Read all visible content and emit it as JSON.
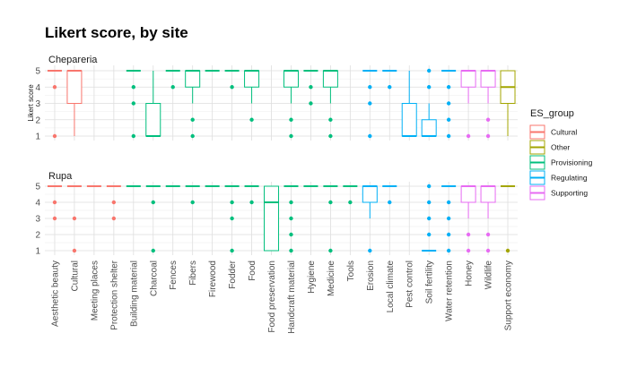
{
  "chart_data": {
    "type": "boxplot",
    "title": "Likert score, by site",
    "ylabel": "Likert score",
    "ylim": [
      1,
      5
    ],
    "yticks": [
      1,
      2,
      3,
      4,
      5
    ],
    "categories": [
      "Aesthetic beauty",
      "Cultural",
      "Meeting places",
      "Protection shelter",
      "Building material",
      "Charcoal",
      "Fences",
      "Fibers",
      "Firewood",
      "Fodder",
      "Food",
      "Food preservation",
      "Handcraft material",
      "Hygiene",
      "Medicine",
      "Tools",
      "Erosion",
      "Local climate",
      "Pest control",
      "Soil fertility",
      "Water retention",
      "Honey",
      "Wildlife",
      "Support economy"
    ],
    "category_group": [
      "Cultural",
      "Cultural",
      "Cultural",
      "Cultural",
      "Provisioning",
      "Provisioning",
      "Provisioning",
      "Provisioning",
      "Provisioning",
      "Provisioning",
      "Provisioning",
      "Provisioning",
      "Provisioning",
      "Provisioning",
      "Provisioning",
      "Provisioning",
      "Regulating",
      "Regulating",
      "Regulating",
      "Regulating",
      "Regulating",
      "Supporting",
      "Supporting",
      "Other"
    ],
    "legend": {
      "title": "ES_group",
      "groups": [
        "Cultural",
        "Other",
        "Provisioning",
        "Regulating",
        "Supporting"
      ],
      "colors": {
        "Cultural": "#F8766D",
        "Other": "#A3A500",
        "Provisioning": "#00BF7D",
        "Regulating": "#00B0F6",
        "Supporting": "#E76BF3"
      }
    },
    "panels": [
      {
        "site": "Chepareria",
        "boxes": [
          {
            "category": "Aesthetic beauty",
            "q1": 5,
            "median": 5,
            "q3": 5,
            "lower": 5,
            "upper": 5,
            "outliers": [
              4,
              1
            ]
          },
          {
            "category": "Cultural",
            "q1": 3,
            "median": 5,
            "q3": 5,
            "lower": 1,
            "upper": 5,
            "outliers": []
          },
          {
            "category": "Building material",
            "q1": 5,
            "median": 5,
            "q3": 5,
            "lower": 5,
            "upper": 5,
            "outliers": [
              4,
              3,
              1
            ]
          },
          {
            "category": "Charcoal",
            "q1": 1,
            "median": 1,
            "q3": 3,
            "lower": 1,
            "upper": 5,
            "outliers": []
          },
          {
            "category": "Fences",
            "q1": 5,
            "median": 5,
            "q3": 5,
            "lower": 5,
            "upper": 5,
            "outliers": [
              4
            ]
          },
          {
            "category": "Fibers",
            "q1": 4,
            "median": 5,
            "q3": 5,
            "lower": 3,
            "upper": 5,
            "outliers": [
              2,
              1
            ]
          },
          {
            "category": "Firewood",
            "q1": 5,
            "median": 5,
            "q3": 5,
            "lower": 5,
            "upper": 5,
            "outliers": []
          },
          {
            "category": "Fodder",
            "q1": 5,
            "median": 5,
            "q3": 5,
            "lower": 5,
            "upper": 5,
            "outliers": [
              4
            ]
          },
          {
            "category": "Food",
            "q1": 4,
            "median": 5,
            "q3": 5,
            "lower": 3,
            "upper": 5,
            "outliers": [
              2
            ]
          },
          {
            "category": "Handcraft material",
            "q1": 4,
            "median": 5,
            "q3": 5,
            "lower": 3,
            "upper": 5,
            "outliers": [
              2,
              1
            ]
          },
          {
            "category": "Hygiene",
            "q1": 5,
            "median": 5,
            "q3": 5,
            "lower": 5,
            "upper": 5,
            "outliers": [
              4,
              3
            ]
          },
          {
            "category": "Medicine",
            "q1": 4,
            "median": 5,
            "q3": 5,
            "lower": 3,
            "upper": 5,
            "outliers": [
              2,
              1
            ]
          },
          {
            "category": "Erosion",
            "q1": 5,
            "median": 5,
            "q3": 5,
            "lower": 5,
            "upper": 5,
            "outliers": [
              4,
              3,
              1
            ]
          },
          {
            "category": "Local climate",
            "q1": 5,
            "median": 5,
            "q3": 5,
            "lower": 5,
            "upper": 5,
            "outliers": [
              4
            ]
          },
          {
            "category": "Pest control",
            "q1": 1,
            "median": 1,
            "q3": 3,
            "lower": 1,
            "upper": 5,
            "outliers": []
          },
          {
            "category": "Soil fertility",
            "q1": 1,
            "median": 1,
            "q3": 2,
            "lower": 1,
            "upper": 3,
            "outliers": [
              5,
              4
            ]
          },
          {
            "category": "Water retention",
            "q1": 5,
            "median": 5,
            "q3": 5,
            "lower": 5,
            "upper": 5,
            "outliers": [
              4,
              3,
              2,
              1
            ]
          },
          {
            "category": "Honey",
            "q1": 4,
            "median": 5,
            "q3": 5,
            "lower": 3,
            "upper": 5,
            "outliers": [
              1
            ]
          },
          {
            "category": "Wildlife",
            "q1": 4,
            "median": 5,
            "q3": 5,
            "lower": 3,
            "upper": 5,
            "outliers": [
              2,
              1
            ]
          },
          {
            "category": "Support economy",
            "q1": 3,
            "median": 4,
            "q3": 5,
            "lower": 1,
            "upper": 5,
            "outliers": []
          }
        ]
      },
      {
        "site": "Rupa",
        "boxes": [
          {
            "category": "Aesthetic beauty",
            "q1": 5,
            "median": 5,
            "q3": 5,
            "lower": 5,
            "upper": 5,
            "outliers": [
              4,
              3
            ]
          },
          {
            "category": "Cultural",
            "q1": 5,
            "median": 5,
            "q3": 5,
            "lower": 5,
            "upper": 5,
            "outliers": [
              3,
              1
            ]
          },
          {
            "category": "Meeting places",
            "q1": 5,
            "median": 5,
            "q3": 5,
            "lower": 5,
            "upper": 5,
            "outliers": []
          },
          {
            "category": "Protection shelter",
            "q1": 5,
            "median": 5,
            "q3": 5,
            "lower": 5,
            "upper": 5,
            "outliers": [
              4,
              3
            ]
          },
          {
            "category": "Building material",
            "q1": 5,
            "median": 5,
            "q3": 5,
            "lower": 5,
            "upper": 5,
            "outliers": []
          },
          {
            "category": "Charcoal",
            "q1": 5,
            "median": 5,
            "q3": 5,
            "lower": 5,
            "upper": 5,
            "outliers": [
              4,
              1
            ]
          },
          {
            "category": "Fences",
            "q1": 5,
            "median": 5,
            "q3": 5,
            "lower": 5,
            "upper": 5,
            "outliers": []
          },
          {
            "category": "Fibers",
            "q1": 5,
            "median": 5,
            "q3": 5,
            "lower": 5,
            "upper": 5,
            "outliers": [
              4
            ]
          },
          {
            "category": "Firewood",
            "q1": 5,
            "median": 5,
            "q3": 5,
            "lower": 5,
            "upper": 5,
            "outliers": []
          },
          {
            "category": "Fodder",
            "q1": 5,
            "median": 5,
            "q3": 5,
            "lower": 5,
            "upper": 5,
            "outliers": [
              4,
              3,
              1
            ]
          },
          {
            "category": "Food",
            "q1": 5,
            "median": 5,
            "q3": 5,
            "lower": 5,
            "upper": 5,
            "outliers": [
              4
            ]
          },
          {
            "category": "Food preservation",
            "q1": 1,
            "median": 4,
            "q3": 5,
            "lower": 1,
            "upper": 5,
            "outliers": []
          },
          {
            "category": "Handcraft material",
            "q1": 5,
            "median": 5,
            "q3": 5,
            "lower": 5,
            "upper": 5,
            "outliers": [
              4,
              3,
              2,
              1
            ]
          },
          {
            "category": "Hygiene",
            "q1": 5,
            "median": 5,
            "q3": 5,
            "lower": 5,
            "upper": 5,
            "outliers": []
          },
          {
            "category": "Medicine",
            "q1": 5,
            "median": 5,
            "q3": 5,
            "lower": 5,
            "upper": 5,
            "outliers": [
              4,
              1
            ]
          },
          {
            "category": "Tools",
            "q1": 5,
            "median": 5,
            "q3": 5,
            "lower": 5,
            "upper": 5,
            "outliers": [
              4
            ]
          },
          {
            "category": "Erosion",
            "q1": 4,
            "median": 5,
            "q3": 5,
            "lower": 3,
            "upper": 5,
            "outliers": [
              1
            ]
          },
          {
            "category": "Local climate",
            "q1": 5,
            "median": 5,
            "q3": 5,
            "lower": 5,
            "upper": 5,
            "outliers": [
              4
            ]
          },
          {
            "category": "Soil fertility",
            "q1": 1,
            "median": 1,
            "q3": 1,
            "lower": 1,
            "upper": 1,
            "outliers": [
              5,
              4,
              3,
              2
            ]
          },
          {
            "category": "Water retention",
            "q1": 5,
            "median": 5,
            "q3": 5,
            "lower": 5,
            "upper": 5,
            "outliers": [
              4,
              3,
              2,
              1
            ]
          },
          {
            "category": "Honey",
            "q1": 4,
            "median": 5,
            "q3": 5,
            "lower": 3,
            "upper": 5,
            "outliers": [
              2,
              1
            ]
          },
          {
            "category": "Wildlife",
            "q1": 4,
            "median": 5,
            "q3": 5,
            "lower": 3,
            "upper": 5,
            "outliers": [
              2,
              1
            ]
          },
          {
            "category": "Support economy",
            "q1": 5,
            "median": 5,
            "q3": 5,
            "lower": 5,
            "upper": 5,
            "outliers": [
              1
            ]
          }
        ]
      }
    ]
  }
}
